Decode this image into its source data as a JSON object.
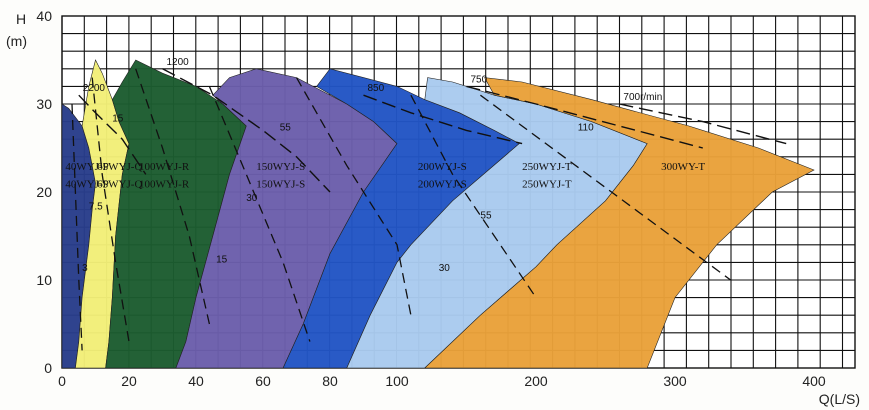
{
  "chart_data": {
    "type": "area",
    "x_axis": {
      "label": "Q(L/S)",
      "ticks": [
        0,
        20,
        40,
        60,
        80,
        100,
        200,
        300,
        400
      ],
      "scale": "piecewise: linear 0-100 then compressed 100-400"
    },
    "y_axis": {
      "label_line1": "H",
      "label_line2": "(m)",
      "range": [
        0,
        40
      ],
      "ticks": [
        0,
        10,
        20,
        30,
        40
      ]
    },
    "grid": true,
    "regions": [
      {
        "id": "wy-p",
        "color": "#283d8a",
        "labels": [
          "40WYJ-P",
          "40WYJ-P"
        ],
        "outline": [
          [
            0,
            0
          ],
          [
            0,
            30
          ],
          [
            2,
            29.5
          ],
          [
            4,
            28.5
          ],
          [
            6,
            27.5
          ],
          [
            8,
            25
          ],
          [
            9,
            23
          ],
          [
            10,
            21
          ],
          [
            9,
            18
          ],
          [
            8,
            14
          ],
          [
            6,
            8
          ],
          [
            5,
            3
          ],
          [
            4,
            0
          ]
        ]
      },
      {
        "id": "wy-q",
        "color": "#f2ee78",
        "labels": [
          "65WYJ-Q",
          "65WYJ-Q"
        ],
        "outline": [
          [
            4,
            0
          ],
          [
            5,
            3
          ],
          [
            6,
            8
          ],
          [
            8,
            14
          ],
          [
            9,
            18
          ],
          [
            10,
            21
          ],
          [
            9,
            23
          ],
          [
            8,
            25
          ],
          [
            6,
            27.5
          ],
          [
            8,
            32
          ],
          [
            10,
            35
          ],
          [
            12,
            33.5
          ],
          [
            15,
            30.5
          ],
          [
            17,
            28
          ],
          [
            20,
            25.5
          ],
          [
            18,
            22
          ],
          [
            16,
            15
          ],
          [
            15,
            8
          ],
          [
            14,
            3
          ],
          [
            13,
            0
          ]
        ]
      },
      {
        "id": "wy-r",
        "color": "#1c5c30",
        "labels": [
          "100WYJ-R",
          "100WYJ-R"
        ],
        "outline": [
          [
            13,
            0
          ],
          [
            14,
            3
          ],
          [
            15,
            8
          ],
          [
            16,
            15
          ],
          [
            18,
            22
          ],
          [
            20,
            25.5
          ],
          [
            17,
            28
          ],
          [
            15,
            30.5
          ],
          [
            18,
            32.5
          ],
          [
            22,
            35
          ],
          [
            30,
            33.5
          ],
          [
            40,
            32
          ],
          [
            48,
            30
          ],
          [
            55,
            27.5
          ],
          [
            50,
            22
          ],
          [
            45,
            15
          ],
          [
            40,
            8
          ],
          [
            37,
            3
          ],
          [
            34,
            0
          ]
        ]
      },
      {
        "id": "wy-s",
        "color": "#6b5eab",
        "labels": [
          "150WYJ-S",
          "150WYJ-S"
        ],
        "outline": [
          [
            34,
            0
          ],
          [
            37,
            3
          ],
          [
            40,
            8
          ],
          [
            45,
            15
          ],
          [
            50,
            22
          ],
          [
            55,
            27.5
          ],
          [
            48,
            30
          ],
          [
            45,
            31
          ],
          [
            50,
            33
          ],
          [
            58,
            34
          ],
          [
            70,
            33
          ],
          [
            85,
            30
          ],
          [
            93,
            28
          ],
          [
            100,
            25.5
          ],
          [
            90,
            20
          ],
          [
            80,
            13
          ],
          [
            72,
            5
          ],
          [
            66,
            0
          ]
        ]
      },
      {
        "id": "wy-s-200",
        "color": "#2255c4",
        "labels": [
          "200WYJ-S",
          "200WYJ-S"
        ],
        "outline": [
          [
            66,
            0
          ],
          [
            72,
            5
          ],
          [
            80,
            13
          ],
          [
            90,
            20
          ],
          [
            100,
            25.5
          ],
          [
            93,
            28
          ],
          [
            85,
            30
          ],
          [
            76,
            32
          ],
          [
            80,
            34
          ],
          [
            90,
            33
          ],
          [
            100,
            32
          ],
          [
            120,
            30.5
          ],
          [
            145,
            29
          ],
          [
            170,
            27
          ],
          [
            188,
            25.5
          ],
          [
            140,
            19
          ],
          [
            110,
            14
          ],
          [
            100,
            12
          ],
          [
            92,
            6
          ],
          [
            85,
            0
          ]
        ]
      },
      {
        "id": "wy-t-250",
        "color": "#a9caee",
        "labels": [
          "250WYJ-T",
          "250WYJ-T"
        ],
        "outline": [
          [
            85,
            0
          ],
          [
            92,
            6
          ],
          [
            100,
            12
          ],
          [
            110,
            14
          ],
          [
            140,
            19
          ],
          [
            188,
            25.5
          ],
          [
            170,
            27
          ],
          [
            145,
            29
          ],
          [
            120,
            30.5
          ],
          [
            122,
            33
          ],
          [
            140,
            32.5
          ],
          [
            170,
            31
          ],
          [
            200,
            30
          ],
          [
            240,
            28
          ],
          [
            280,
            25.5
          ],
          [
            270,
            23
          ],
          [
            250,
            19
          ],
          [
            215,
            14
          ],
          [
            200,
            11.5
          ],
          [
            160,
            6
          ],
          [
            120,
            0
          ]
        ]
      },
      {
        "id": "wy-t-300",
        "color": "#e9a13a",
        "labels": [
          "300WY-T"
        ],
        "outline": [
          [
            120,
            0
          ],
          [
            160,
            6
          ],
          [
            200,
            11.5
          ],
          [
            215,
            14
          ],
          [
            250,
            19
          ],
          [
            270,
            23
          ],
          [
            280,
            25.5
          ],
          [
            240,
            28
          ],
          [
            200,
            30
          ],
          [
            170,
            31
          ],
          [
            163,
            33
          ],
          [
            190,
            32.5
          ],
          [
            240,
            30.5
          ],
          [
            310,
            27.5
          ],
          [
            360,
            25
          ],
          [
            400,
            22.5
          ],
          [
            370,
            20
          ],
          [
            330,
            14
          ],
          [
            300,
            8
          ],
          [
            280,
            0
          ]
        ]
      }
    ],
    "speed_curves": [
      {
        "label": "2200",
        "points": [
          [
            5,
            31
          ],
          [
            10,
            29
          ],
          [
            18,
            26
          ],
          [
            25,
            22
          ]
        ]
      },
      {
        "label": "1200",
        "points": [
          [
            30,
            34
          ],
          [
            45,
            31
          ],
          [
            60,
            27
          ],
          [
            70,
            24
          ],
          [
            80,
            20
          ]
        ]
      },
      {
        "label": "850",
        "points": [
          [
            90,
            31
          ],
          [
            110,
            29
          ],
          [
            150,
            27
          ],
          [
            190,
            25.5
          ]
        ]
      },
      {
        "label": "750",
        "points": [
          [
            150,
            32
          ],
          [
            200,
            30
          ],
          [
            260,
            27.5
          ],
          [
            320,
            25
          ]
        ]
      },
      {
        "label": "700r/min",
        "points": [
          [
            260,
            30
          ],
          [
            320,
            28
          ],
          [
            380,
            25.5
          ]
        ]
      }
    ],
    "flow_labels": [
      {
        "label": "15",
        "pos": [
          15,
          28
        ]
      },
      {
        "label": "7.5",
        "pos": [
          8,
          18
        ]
      },
      {
        "label": "3",
        "pos": [
          6,
          11
        ]
      },
      {
        "label": "55",
        "pos": [
          65,
          27
        ]
      },
      {
        "label": "30",
        "pos": [
          55,
          19
        ]
      },
      {
        "label": "15",
        "pos": [
          46,
          12
        ]
      },
      {
        "label": "110",
        "pos": [
          230,
          27
        ]
      },
      {
        "label": "55",
        "pos": [
          160,
          17
        ]
      },
      {
        "label": "30",
        "pos": [
          130,
          11
        ]
      }
    ]
  }
}
